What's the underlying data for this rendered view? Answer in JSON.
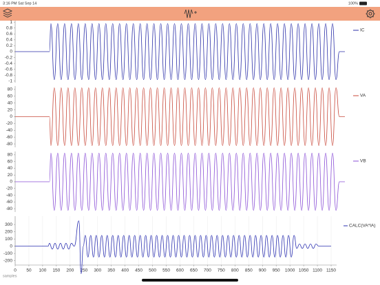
{
  "status_bar": {
    "time": "3:16 PM",
    "date": "Sat Sep 14",
    "battery": "100%"
  },
  "chart_data": [
    {
      "type": "line",
      "xlim": [
        0,
        1200
      ],
      "ylim": [
        -1.05,
        1.05
      ],
      "yticks": [
        1,
        0.8,
        0.6,
        0.4,
        0.2,
        0,
        -0.2,
        -0.4,
        -0.6,
        -0.8,
        -1
      ],
      "x": [
        0,
        125,
        130,
        142.5,
        155,
        167.5,
        180,
        192.5,
        205,
        217.5,
        230,
        242.5,
        255,
        267.5,
        280,
        292.5,
        305,
        317.5,
        330,
        342.5,
        355,
        367.5,
        380,
        392.5,
        405,
        417.5,
        430,
        442.5,
        455,
        467.5,
        480,
        492.5,
        505,
        517.5,
        530,
        542.5,
        555,
        567.5,
        580,
        592.5,
        605,
        617.5,
        630,
        642.5,
        655,
        667.5,
        680,
        692.5,
        705,
        717.5,
        730,
        742.5,
        755,
        767.5,
        780,
        792.5,
        805,
        817.5,
        830,
        842.5,
        855,
        867.5,
        880,
        892.5,
        905,
        917.5,
        930,
        942.5,
        955,
        967.5,
        980,
        992.5,
        1005,
        1017.5,
        1030,
        1042.5,
        1055,
        1067.5,
        1080,
        1092.5,
        1105,
        1117.5,
        1130,
        1142.5,
        1155,
        1167.5,
        1180,
        1200
      ],
      "series": [
        {
          "name": "IC",
          "color": "#2b2fa8",
          "values": [
            0,
            0,
            0.95,
            -0.95,
            0.95,
            -0.95,
            0.95,
            -0.95,
            0.95,
            -0.95,
            0.95,
            -0.95,
            0.95,
            -0.95,
            0.95,
            -0.95,
            0.95,
            -0.95,
            0.95,
            -0.95,
            0.95,
            -0.95,
            0.95,
            -0.95,
            0.95,
            -0.95,
            0.95,
            -0.95,
            0.95,
            -0.95,
            0.95,
            -0.95,
            0.95,
            -0.95,
            0.95,
            -0.95,
            0.95,
            -0.95,
            0.95,
            -0.95,
            0.95,
            -0.95,
            0.95,
            -0.95,
            0.95,
            -0.95,
            0.95,
            -0.95,
            0.95,
            -0.95,
            0.95,
            -0.95,
            0.95,
            -0.95,
            0.95,
            -0.95,
            0.95,
            -0.95,
            0.95,
            -0.95,
            0.95,
            -0.95,
            0.95,
            -0.95,
            0.95,
            -0.95,
            0.95,
            -0.95,
            0.95,
            -0.95,
            0.95,
            -0.95,
            0.95,
            -0.95,
            0.95,
            -0.95,
            0.95,
            -0.95,
            0.95,
            -0.95,
            0.95,
            -0.95,
            0.95,
            -0.95,
            0.95,
            -0.95,
            0,
            0
          ]
        }
      ]
    },
    {
      "type": "line",
      "xlim": [
        0,
        1200
      ],
      "ylim": [
        -90,
        90
      ],
      "yticks": [
        80,
        60,
        40,
        20,
        0,
        -20,
        -40,
        -60,
        -80
      ],
      "x": [
        0,
        125,
        130,
        142.5,
        155,
        167.5,
        180,
        192.5,
        205,
        217.5,
        230,
        242.5,
        255,
        267.5,
        280,
        292.5,
        305,
        317.5,
        330,
        342.5,
        355,
        367.5,
        380,
        392.5,
        405,
        417.5,
        430,
        442.5,
        455,
        467.5,
        480,
        492.5,
        505,
        517.5,
        530,
        542.5,
        555,
        567.5,
        580,
        592.5,
        605,
        617.5,
        630,
        642.5,
        655,
        667.5,
        680,
        692.5,
        705,
        717.5,
        730,
        742.5,
        755,
        767.5,
        780,
        792.5,
        805,
        817.5,
        830,
        842.5,
        855,
        867.5,
        880,
        892.5,
        905,
        917.5,
        930,
        942.5,
        955,
        967.5,
        980,
        992.5,
        1005,
        1017.5,
        1030,
        1042.5,
        1055,
        1067.5,
        1080,
        1092.5,
        1105,
        1117.5,
        1130,
        1142.5,
        1155,
        1167.5,
        1180,
        1200
      ],
      "series": [
        {
          "name": "VA",
          "color": "#c8483a",
          "values": [
            0,
            0,
            -85,
            85,
            -85,
            85,
            -85,
            85,
            -85,
            85,
            -85,
            85,
            -85,
            85,
            -85,
            85,
            -85,
            85,
            -85,
            85,
            -85,
            85,
            -85,
            85,
            -85,
            85,
            -85,
            85,
            -85,
            85,
            -85,
            85,
            -85,
            85,
            -85,
            85,
            -85,
            85,
            -85,
            85,
            -85,
            85,
            -85,
            85,
            -85,
            85,
            -85,
            85,
            -85,
            85,
            -85,
            85,
            -85,
            85,
            -85,
            85,
            -85,
            85,
            -85,
            85,
            -85,
            85,
            -85,
            85,
            -85,
            85,
            -85,
            85,
            -85,
            85,
            -85,
            85,
            -85,
            85,
            -85,
            85,
            -85,
            85,
            -85,
            85,
            -85,
            85,
            -85,
            85,
            -85,
            85,
            0,
            0
          ]
        }
      ]
    },
    {
      "type": "line",
      "xlim": [
        0,
        1200
      ],
      "ylim": [
        -90,
        90
      ],
      "yticks": [
        80,
        60,
        40,
        20,
        0,
        -20,
        -40,
        -60,
        -80
      ],
      "x": [
        0,
        125,
        130,
        142.5,
        155,
        167.5,
        180,
        192.5,
        205,
        217.5,
        230,
        242.5,
        255,
        267.5,
        280,
        292.5,
        305,
        317.5,
        330,
        342.5,
        355,
        367.5,
        380,
        392.5,
        405,
        417.5,
        430,
        442.5,
        455,
        467.5,
        480,
        492.5,
        505,
        517.5,
        530,
        542.5,
        555,
        567.5,
        580,
        592.5,
        605,
        617.5,
        630,
        642.5,
        655,
        667.5,
        680,
        692.5,
        705,
        717.5,
        730,
        742.5,
        755,
        767.5,
        780,
        792.5,
        805,
        817.5,
        830,
        842.5,
        855,
        867.5,
        880,
        892.5,
        905,
        917.5,
        930,
        942.5,
        955,
        967.5,
        980,
        992.5,
        1005,
        1017.5,
        1030,
        1042.5,
        1055,
        1067.5,
        1080,
        1092.5,
        1105,
        1117.5,
        1130,
        1142.5,
        1155,
        1167.5,
        1180,
        1200
      ],
      "series": [
        {
          "name": "VB",
          "color": "#8a4fd6",
          "values": [
            0,
            0,
            85,
            -85,
            85,
            -85,
            85,
            -85,
            85,
            -85,
            85,
            -85,
            85,
            -85,
            85,
            -85,
            85,
            -85,
            85,
            -85,
            85,
            -85,
            85,
            -85,
            85,
            -85,
            85,
            -85,
            85,
            -85,
            85,
            -85,
            85,
            -85,
            85,
            -85,
            85,
            -85,
            85,
            -85,
            85,
            -85,
            85,
            -85,
            85,
            -85,
            85,
            -85,
            85,
            -85,
            85,
            -85,
            85,
            -85,
            85,
            -85,
            85,
            -85,
            85,
            -85,
            85,
            -85,
            85,
            -85,
            85,
            -85,
            85,
            -85,
            85,
            -85,
            85,
            -85,
            85,
            -85,
            85,
            -85,
            85,
            -85,
            85,
            -85,
            85,
            -85,
            85,
            -85,
            85,
            -85,
            0,
            0
          ]
        }
      ]
    },
    {
      "type": "line",
      "x_label": "samples",
      "grid": true,
      "xlim": [
        0,
        1170
      ],
      "ylim": [
        -260,
        415
      ],
      "yticks": [
        300,
        200,
        100,
        0,
        -100,
        -200
      ],
      "xticks": [
        0,
        50,
        100,
        150,
        200,
        250,
        300,
        350,
        400,
        450,
        500,
        550,
        600,
        650,
        700,
        750,
        800,
        850,
        900,
        950,
        1000,
        1050,
        1100,
        1150
      ],
      "x": [
        0,
        120,
        125,
        135,
        145,
        155,
        165,
        175,
        185,
        195,
        205,
        215,
        232,
        240,
        248,
        255,
        265,
        275,
        285,
        295,
        305,
        315,
        325,
        335,
        345,
        355,
        365,
        375,
        385,
        395,
        405,
        415,
        425,
        435,
        445,
        455,
        465,
        475,
        485,
        495,
        505,
        515,
        525,
        535,
        545,
        555,
        565,
        575,
        585,
        595,
        605,
        615,
        625,
        635,
        645,
        655,
        665,
        675,
        685,
        695,
        705,
        715,
        725,
        735,
        745,
        755,
        765,
        775,
        785,
        795,
        805,
        815,
        825,
        835,
        845,
        855,
        865,
        875,
        885,
        895,
        905,
        915,
        925,
        935,
        945,
        955,
        965,
        975,
        985,
        995,
        1005,
        1015,
        1025,
        1035,
        1045,
        1055,
        1065,
        1075,
        1085,
        1095,
        1105,
        1150
      ],
      "series": [
        {
          "name": "CALC(VA*IA)",
          "color": "#2a2fb0",
          "values": [
            0,
            0,
            40,
            -40,
            40,
            -40,
            40,
            -40,
            40,
            -40,
            40,
            0,
            350,
            -380,
            0,
            150,
            -150,
            150,
            -150,
            150,
            -150,
            150,
            -150,
            150,
            -150,
            150,
            -150,
            150,
            -150,
            150,
            -150,
            150,
            -150,
            150,
            -150,
            150,
            -150,
            150,
            -150,
            150,
            -150,
            150,
            -150,
            150,
            -150,
            150,
            -150,
            150,
            -150,
            150,
            -150,
            150,
            -150,
            150,
            -150,
            150,
            -150,
            150,
            -150,
            150,
            -150,
            150,
            -150,
            150,
            -150,
            150,
            -150,
            150,
            -150,
            150,
            -150,
            150,
            -150,
            150,
            -150,
            150,
            -150,
            150,
            -150,
            150,
            -150,
            150,
            -150,
            150,
            -150,
            150,
            -150,
            150,
            -150,
            150,
            -150,
            150,
            -30,
            30,
            -30,
            30,
            -30,
            30,
            -30,
            30,
            0,
            0
          ]
        }
      ]
    }
  ]
}
